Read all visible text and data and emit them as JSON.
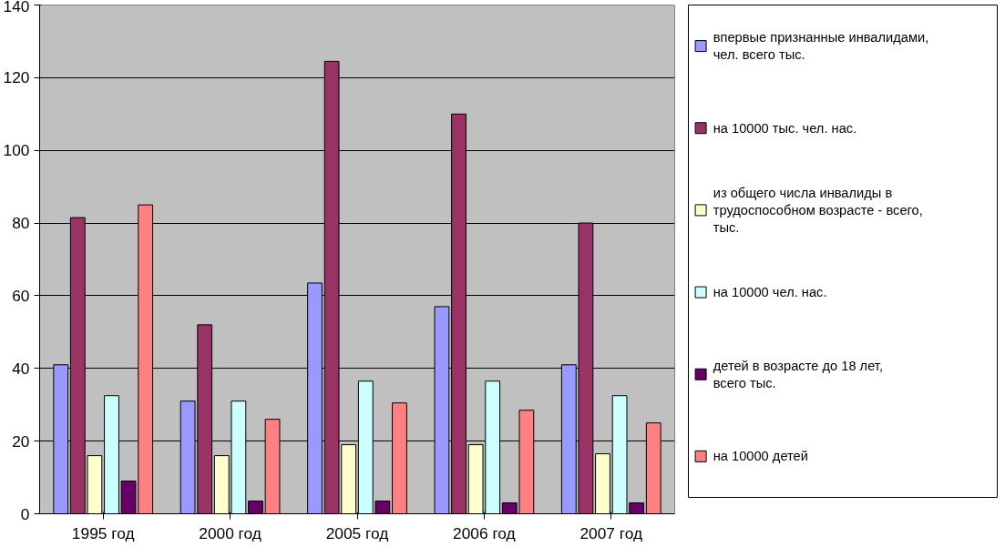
{
  "chart_data": {
    "type": "bar",
    "categories": [
      "1995 год",
      "2000 год",
      "2005 год",
      "2006 год",
      "2007 год"
    ],
    "series": [
      {
        "name": "впервые признанные инвалидами, чел. всего тыс.",
        "color": "#9999ff",
        "values": [
          41,
          31,
          63.5,
          57,
          41
        ]
      },
      {
        "name": "на 10000 тыс. чел. нас.",
        "color": "#993366",
        "values": [
          81.5,
          52,
          124.5,
          110,
          80
        ]
      },
      {
        "name": "из общего числа инвалиды в трудоспособном возрасте - всего, тыс.",
        "color": "#ffffcc",
        "values": [
          16,
          16,
          19,
          19,
          16.5
        ]
      },
      {
        "name": "на 10000 чел. нас.",
        "color": "#ccffff",
        "values": [
          32.5,
          31,
          36.5,
          36.5,
          32.5
        ]
      },
      {
        "name": "детей в возрасте до 18 лет, всего тыс.",
        "color": "#660066",
        "values": [
          9,
          3.5,
          3.5,
          3,
          3
        ]
      },
      {
        "name": "на 10000 детей",
        "color": "#ff8080",
        "values": [
          85,
          26,
          30.5,
          28.5,
          25
        ]
      }
    ],
    "ylim": [
      0,
      140
    ],
    "yticks": [
      0,
      20,
      40,
      60,
      80,
      100,
      120,
      140
    ],
    "grid": "y",
    "legend": "right"
  }
}
